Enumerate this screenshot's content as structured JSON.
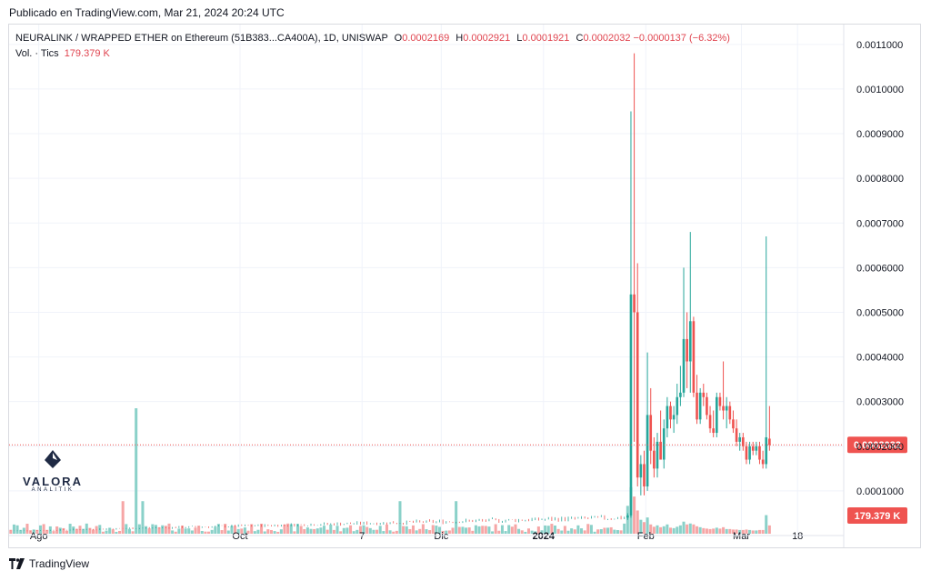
{
  "header": {
    "published": "Publicado en TradingView.com, Mar 21, 2024 20:24 UTC"
  },
  "legend": {
    "symbol": "NEURALINK / WRAPPED ETHER on Ethereum (51B383...CA400A), 1D, UNISWAP",
    "open_label": "O",
    "open": "0.0002169",
    "high_label": "H",
    "high": "0.0002921",
    "low_label": "L",
    "low": "0.0001921",
    "close_label": "C",
    "close": "0.0002032",
    "change": "−0.0000137 (−6.32%)",
    "volume_label": "Vol. · Tics",
    "volume": "179.379 K"
  },
  "price_badge": "0.0002032",
  "volume_badge": "179.379 K",
  "logo": {
    "name": "VALORA",
    "subtitle": "ANALITIK"
  },
  "footer": {
    "brand": "TradingView"
  },
  "colors": {
    "up": "#26a69a",
    "down": "#ef5350",
    "up_volume": "#8ad1c9",
    "down_volume": "#f6a6a6",
    "last_price_line": "#ef5350"
  },
  "chart_data": {
    "type": "candlestick",
    "y_ticks": [
      "0.0001000",
      "0.0002000",
      "0.0003000",
      "0.0004000",
      "0.0005000",
      "0.0006000",
      "0.0007000",
      "0.0008000",
      "0.0009000",
      "0.0010000",
      "0.0011000"
    ],
    "y_tick_values": [
      0.0001,
      0.0002,
      0.0003,
      0.0004,
      0.0005,
      0.0006,
      0.0007,
      0.0008,
      0.0009,
      0.001,
      0.0011
    ],
    "ylim": [
      0.0,
      0.00112
    ],
    "x_tick_labels": [
      {
        "label": "Ago",
        "date": "2023-08-01",
        "bold": false
      },
      {
        "label": "Oct",
        "date": "2023-10-01",
        "bold": false
      },
      {
        "label": "7",
        "date": "2023-11-07",
        "bold": false
      },
      {
        "label": "Dic",
        "date": "2023-12-01",
        "bold": false
      },
      {
        "label": "2024",
        "date": "2024-01-01",
        "bold": true
      },
      {
        "label": "Feb",
        "date": "2024-02-01",
        "bold": false
      },
      {
        "label": "Mar",
        "date": "2024-03-01",
        "bold": false
      },
      {
        "label": "18",
        "date": "2024-03-18",
        "bold": false
      }
    ],
    "x_range": [
      "2023-07-23",
      "2024-04-01"
    ],
    "last_price": 0.0002032,
    "volume_max": 2700,
    "early_candles": {
      "start": "2023-07-23",
      "end": "2024-01-25",
      "price_start": 1.02e-05,
      "price_end": 4e-05
    },
    "candles": [
      {
        "date": "2024-01-26",
        "o": 4e-05,
        "h": 5e-05,
        "l": 3.5e-05,
        "c": 4.5e-05,
        "v": 600
      },
      {
        "date": "2024-01-27",
        "o": 4.5e-05,
        "h": 0.00095,
        "l": 4e-05,
        "c": 0.00054,
        "v": 1000
      },
      {
        "date": "2024-01-28",
        "o": 0.00054,
        "h": 0.00108,
        "l": 0.00021,
        "c": 0.0005,
        "v": 800
      },
      {
        "date": "2024-01-29",
        "o": 0.0005,
        "h": 0.00061,
        "l": 0.00011,
        "c": 0.00013,
        "v": 500
      },
      {
        "date": "2024-01-30",
        "o": 0.00013,
        "h": 0.00018,
        "l": 9e-05,
        "c": 0.00016,
        "v": 300
      },
      {
        "date": "2024-01-31",
        "o": 0.00016,
        "h": 0.00019,
        "l": 9e-05,
        "c": 0.00011,
        "v": 250
      },
      {
        "date": "2024-02-01",
        "o": 0.00011,
        "h": 0.00041,
        "l": 0.0001,
        "c": 0.00027,
        "v": 350
      },
      {
        "date": "2024-02-02",
        "o": 0.00027,
        "h": 0.00033,
        "l": 0.00016,
        "c": 0.00019,
        "v": 200
      },
      {
        "date": "2024-02-03",
        "o": 0.00019,
        "h": 0.00022,
        "l": 0.00013,
        "c": 0.00015,
        "v": 150
      },
      {
        "date": "2024-02-04",
        "o": 0.00015,
        "h": 0.00023,
        "l": 0.00013,
        "c": 0.00021,
        "v": 180
      },
      {
        "date": "2024-02-05",
        "o": 0.00021,
        "h": 0.00028,
        "l": 0.00017,
        "c": 0.00017,
        "v": 140
      },
      {
        "date": "2024-02-06",
        "o": 0.00017,
        "h": 0.00026,
        "l": 0.00015,
        "c": 0.00024,
        "v": 160
      },
      {
        "date": "2024-02-07",
        "o": 0.00024,
        "h": 0.00031,
        "l": 0.00022,
        "c": 0.00029,
        "v": 200
      },
      {
        "date": "2024-02-08",
        "o": 0.00029,
        "h": 0.0003,
        "l": 0.00024,
        "c": 0.00026,
        "v": 130
      },
      {
        "date": "2024-02-09",
        "o": 0.00026,
        "h": 0.00029,
        "l": 0.00023,
        "c": 0.00027,
        "v": 120
      },
      {
        "date": "2024-02-10",
        "o": 0.00027,
        "h": 0.00034,
        "l": 0.00025,
        "c": 0.00031,
        "v": 150
      },
      {
        "date": "2024-02-11",
        "o": 0.00031,
        "h": 0.00038,
        "l": 0.00029,
        "c": 0.00032,
        "v": 180
      },
      {
        "date": "2024-02-12",
        "o": 0.00032,
        "h": 0.0006,
        "l": 0.00031,
        "c": 0.00044,
        "v": 260
      },
      {
        "date": "2024-02-13",
        "o": 0.00044,
        "h": 0.0005,
        "l": 0.00033,
        "c": 0.00039,
        "v": 200
      },
      {
        "date": "2024-02-14",
        "o": 0.00039,
        "h": 0.00068,
        "l": 0.00032,
        "c": 0.00048,
        "v": 220
      },
      {
        "date": "2024-02-15",
        "o": 0.00048,
        "h": 0.00049,
        "l": 0.00031,
        "c": 0.00032,
        "v": 200
      },
      {
        "date": "2024-02-16",
        "o": 0.00032,
        "h": 0.00036,
        "l": 0.00025,
        "c": 0.00026,
        "v": 160
      },
      {
        "date": "2024-02-17",
        "o": 0.00026,
        "h": 0.00033,
        "l": 0.00025,
        "c": 0.00032,
        "v": 140
      },
      {
        "date": "2024-02-18",
        "o": 0.00032,
        "h": 0.00034,
        "l": 0.00029,
        "c": 0.00031,
        "v": 120
      },
      {
        "date": "2024-02-19",
        "o": 0.00031,
        "h": 0.00032,
        "l": 0.00026,
        "c": 0.00027,
        "v": 110
      },
      {
        "date": "2024-02-20",
        "o": 0.00027,
        "h": 0.00029,
        "l": 0.00023,
        "c": 0.00024,
        "v": 100
      },
      {
        "date": "2024-02-21",
        "o": 0.00024,
        "h": 0.00028,
        "l": 0.00022,
        "c": 0.00023,
        "v": 110
      },
      {
        "date": "2024-02-22",
        "o": 0.00023,
        "h": 0.00032,
        "l": 0.00022,
        "c": 0.00031,
        "v": 130
      },
      {
        "date": "2024-02-23",
        "o": 0.00031,
        "h": 0.00032,
        "l": 0.00028,
        "c": 0.00029,
        "v": 110
      },
      {
        "date": "2024-02-24",
        "o": 0.00029,
        "h": 0.00039,
        "l": 0.00026,
        "c": 0.00028,
        "v": 140
      },
      {
        "date": "2024-02-25",
        "o": 0.00028,
        "h": 0.00031,
        "l": 0.00024,
        "c": 0.00029,
        "v": 100
      },
      {
        "date": "2024-02-26",
        "o": 0.00029,
        "h": 0.0003,
        "l": 0.00025,
        "c": 0.00026,
        "v": 100
      },
      {
        "date": "2024-02-27",
        "o": 0.00026,
        "h": 0.00028,
        "l": 0.00023,
        "c": 0.00024,
        "v": 90
      },
      {
        "date": "2024-02-28",
        "o": 0.00024,
        "h": 0.00026,
        "l": 0.0002,
        "c": 0.00021,
        "v": 90
      },
      {
        "date": "2024-02-29",
        "o": 0.00021,
        "h": 0.00023,
        "l": 0.00019,
        "c": 0.00022,
        "v": 80
      },
      {
        "date": "2024-03-01",
        "o": 0.00022,
        "h": 0.00023,
        "l": 0.00019,
        "c": 0.0002,
        "v": 80
      },
      {
        "date": "2024-03-02",
        "o": 0.0002,
        "h": 0.00021,
        "l": 0.00016,
        "c": 0.00017,
        "v": 90
      },
      {
        "date": "2024-03-03",
        "o": 0.00017,
        "h": 0.00021,
        "l": 0.00016,
        "c": 0.0002,
        "v": 80
      },
      {
        "date": "2024-03-04",
        "o": 0.0002,
        "h": 0.00021,
        "l": 0.00018,
        "c": 0.00019,
        "v": 70
      },
      {
        "date": "2024-03-05",
        "o": 0.00019,
        "h": 0.00021,
        "l": 0.00018,
        "c": 0.0002,
        "v": 70
      },
      {
        "date": "2024-03-06",
        "o": 0.0002,
        "h": 0.00021,
        "l": 0.00016,
        "c": 0.00017,
        "v": 80
      },
      {
        "date": "2024-03-07",
        "o": 0.00017,
        "h": 0.00019,
        "l": 0.00015,
        "c": 0.00016,
        "v": 80
      },
      {
        "date": "2024-03-08",
        "o": 0.00016,
        "h": 0.00067,
        "l": 0.00015,
        "c": 0.00022,
        "v": 400
      },
      {
        "date": "2024-03-09",
        "o": 0.000217,
        "h": 0.00029,
        "l": 0.00019,
        "c": 0.000203,
        "v": 179
      }
    ]
  }
}
